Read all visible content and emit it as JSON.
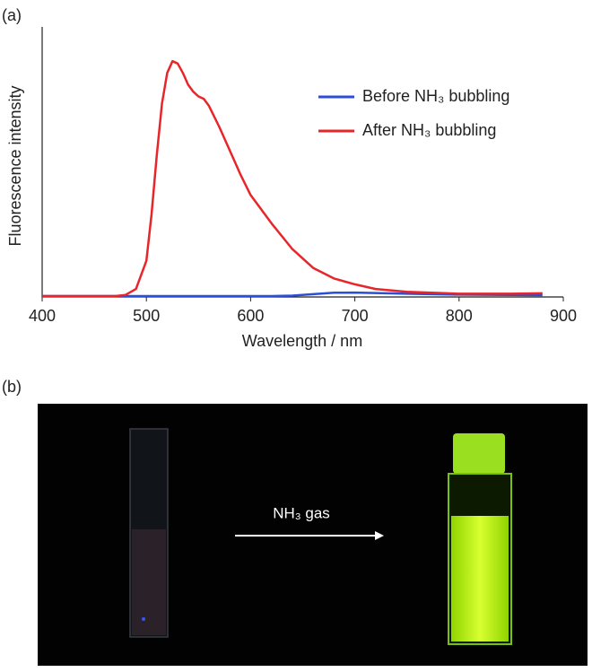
{
  "panel_labels": [
    "(a)",
    "(b)"
  ],
  "chart_data": {
    "type": "line",
    "y_label": "Fluorescence intensity",
    "x_label": "Wavelength / nm",
    "x": [
      400,
      450,
      470,
      480,
      490,
      500,
      505,
      510,
      515,
      520,
      525,
      530,
      535,
      540,
      545,
      550,
      555,
      560,
      570,
      580,
      590,
      600,
      620,
      640,
      660,
      680,
      700,
      720,
      750,
      800,
      850,
      880
    ],
    "series": [
      {
        "name": "Before NH₃ bubbling",
        "color": "#2b4fd6",
        "values": [
          0,
          0,
          0,
          0,
          0,
          0,
          0,
          0,
          0,
          0,
          0,
          0,
          0,
          0,
          0,
          0,
          0,
          0,
          0,
          0,
          0,
          0,
          0,
          0.002,
          0.008,
          0.014,
          0.015,
          0.013,
          0.01,
          0.006,
          0.005,
          0.004
        ]
      },
      {
        "name": "After NH₃ bubbling",
        "color": "#e8262a",
        "values": [
          0,
          0,
          0,
          0.005,
          0.03,
          0.15,
          0.35,
          0.6,
          0.82,
          0.95,
          1.0,
          0.99,
          0.95,
          0.9,
          0.87,
          0.85,
          0.84,
          0.81,
          0.72,
          0.62,
          0.52,
          0.43,
          0.31,
          0.2,
          0.12,
          0.075,
          0.05,
          0.03,
          0.018,
          0.01,
          0.01,
          0.012
        ]
      }
    ],
    "xlim": [
      400,
      900
    ],
    "xticks": [
      400,
      500,
      600,
      700,
      800,
      900
    ],
    "ylim": [
      0,
      1.1
    ],
    "legend": "upper right"
  },
  "photo": {
    "annotation": "NH₃ gas"
  }
}
